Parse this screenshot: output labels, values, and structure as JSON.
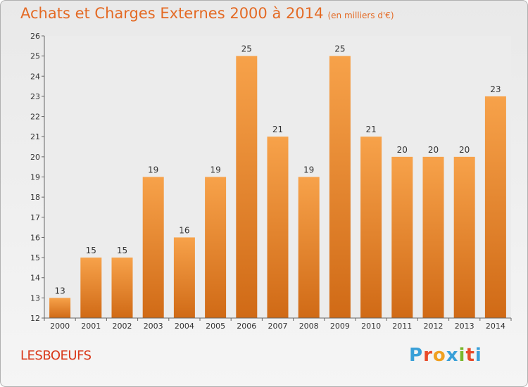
{
  "header": {
    "title": "Achats et Charges Externes 2000 à 2014",
    "subtitle": "(en milliers d'€)"
  },
  "footer": {
    "town": "LESBOEUFS",
    "logo": {
      "letters": [
        "P",
        "r",
        "o",
        "x",
        "i",
        "t",
        "i"
      ],
      "colors": [
        "#3aa0d8",
        "#e84a2a",
        "#f0a020",
        "#3aa0d8",
        "#79b72c",
        "#e84a2a",
        "#3aa0d8"
      ]
    }
  },
  "chart_data": {
    "type": "bar",
    "categories": [
      "2000",
      "2001",
      "2002",
      "2003",
      "2004",
      "2005",
      "2006",
      "2007",
      "2008",
      "2009",
      "2010",
      "2011",
      "2012",
      "2013",
      "2014"
    ],
    "values": [
      13,
      15,
      15,
      19,
      16,
      19,
      25,
      21,
      19,
      25,
      21,
      20,
      20,
      20,
      23
    ],
    "ylim": [
      12,
      26
    ],
    "yticks": [
      12,
      13,
      14,
      15,
      16,
      17,
      18,
      19,
      20,
      21,
      22,
      23,
      24,
      25,
      26
    ],
    "grid": false,
    "bar_color": "#f0953a"
  }
}
